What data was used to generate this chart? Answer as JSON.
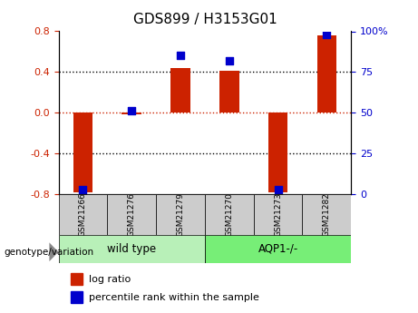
{
  "title": "GDS899 / H3153G01",
  "samples": [
    "GSM21266",
    "GSM21276",
    "GSM21279",
    "GSM21270",
    "GSM21273",
    "GSM21282"
  ],
  "log_ratio": [
    -0.78,
    -0.02,
    0.44,
    0.41,
    -0.78,
    0.76
  ],
  "percentile_rank": [
    3,
    51,
    85,
    82,
    3,
    98
  ],
  "groups": [
    {
      "label": "wild type",
      "indices": [
        0,
        1,
        2
      ],
      "color": "#b8f0b8"
    },
    {
      "label": "AQP1-/-",
      "indices": [
        3,
        4,
        5
      ],
      "color": "#77ee77"
    }
  ],
  "ylim": [
    -0.8,
    0.8
  ],
  "yticks_left": [
    -0.8,
    -0.4,
    0.0,
    0.4,
    0.8
  ],
  "yticks_right": [
    0,
    25,
    50,
    75,
    100
  ],
  "bar_color": "#cc2200",
  "dot_color": "#0000cc",
  "title_color": "#000000",
  "left_tick_color": "#cc2200",
  "right_tick_color": "#0000cc",
  "zero_line_color": "#cc2200",
  "dotted_line_color": "#000000",
  "legend_log_ratio_color": "#cc2200",
  "legend_percentile_color": "#0000cc",
  "bar_width": 0.4,
  "sample_box_color": "#cccccc",
  "genotype_label": "genotype/variation",
  "arrow_color": "#888888"
}
